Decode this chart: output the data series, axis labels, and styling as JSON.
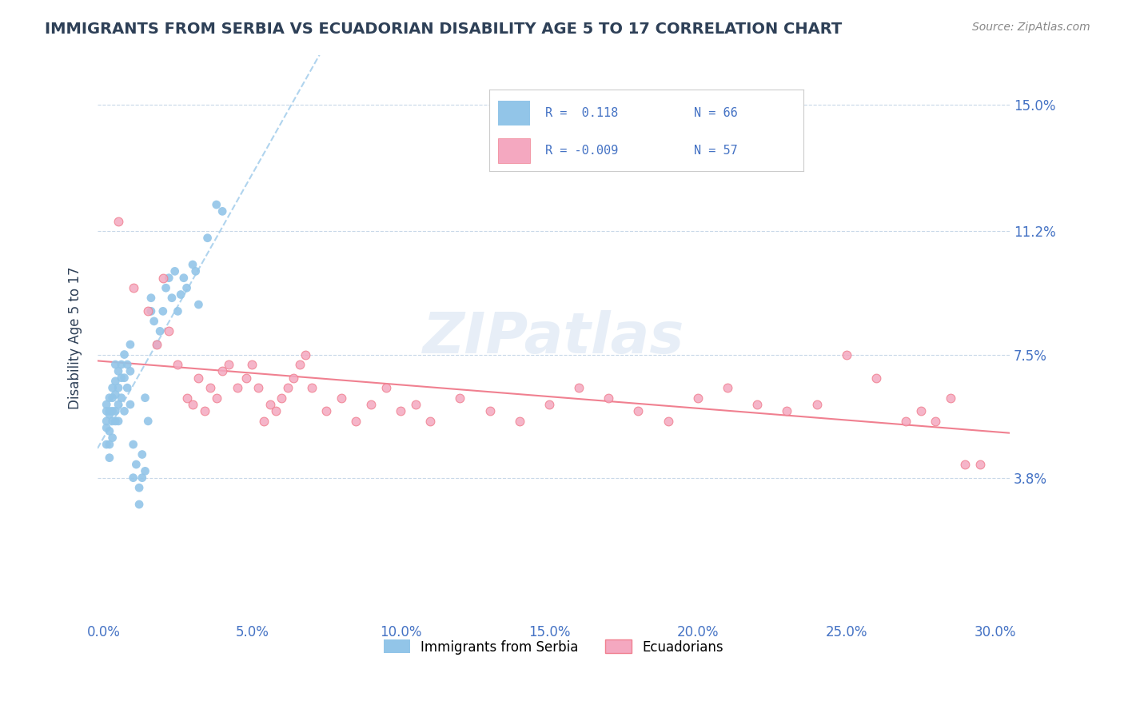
{
  "title": "IMMIGRANTS FROM SERBIA VS ECUADORIAN DISABILITY AGE 5 TO 17 CORRELATION CHART",
  "source_text": "Source: ZipAtlas.com",
  "xlabel_ticks": [
    "0.0%",
    "30.0%"
  ],
  "ylabel_ticks": [
    0.038,
    0.075,
    0.112,
    0.15
  ],
  "ylabel_tick_labels": [
    "3.8%",
    "7.5%",
    "11.2%",
    "15.0%"
  ],
  "xlim": [
    -0.002,
    0.305
  ],
  "ylim": [
    -0.005,
    0.165
  ],
  "blue_color": "#92C5E8",
  "pink_color": "#F4A8C0",
  "blue_line_color": "#B0D4EE",
  "pink_line_color": "#F08090",
  "title_color": "#2E4057",
  "label_color": "#4472C4",
  "grid_color": "#C8D8E8",
  "watermark": "ZIPatlas",
  "watermark_color": "#D0DFF0",
  "legend_r1": "R =  0.118",
  "legend_n1": "N = 66",
  "legend_r2": "R = -0.009",
  "legend_n2": "N = 57",
  "legend_label1": "Immigrants from Serbia",
  "legend_label2": "Ecuadorians",
  "blue_x": [
    0.001,
    0.001,
    0.001,
    0.001,
    0.001,
    0.002,
    0.002,
    0.002,
    0.002,
    0.002,
    0.002,
    0.003,
    0.003,
    0.003,
    0.003,
    0.003,
    0.004,
    0.004,
    0.004,
    0.004,
    0.004,
    0.005,
    0.005,
    0.005,
    0.005,
    0.006,
    0.006,
    0.006,
    0.007,
    0.007,
    0.007,
    0.008,
    0.008,
    0.009,
    0.009,
    0.009,
    0.01,
    0.01,
    0.011,
    0.012,
    0.012,
    0.013,
    0.013,
    0.014,
    0.014,
    0.015,
    0.016,
    0.016,
    0.017,
    0.018,
    0.019,
    0.02,
    0.021,
    0.022,
    0.023,
    0.024,
    0.025,
    0.026,
    0.027,
    0.028,
    0.03,
    0.031,
    0.032,
    0.035,
    0.038,
    0.04
  ],
  "blue_y": [
    0.058,
    0.053,
    0.048,
    0.06,
    0.055,
    0.062,
    0.058,
    0.052,
    0.057,
    0.048,
    0.044,
    0.065,
    0.058,
    0.062,
    0.055,
    0.05,
    0.067,
    0.063,
    0.058,
    0.072,
    0.055,
    0.06,
    0.055,
    0.07,
    0.065,
    0.072,
    0.068,
    0.062,
    0.075,
    0.068,
    0.058,
    0.072,
    0.065,
    0.078,
    0.07,
    0.06,
    0.038,
    0.048,
    0.042,
    0.035,
    0.03,
    0.038,
    0.045,
    0.04,
    0.062,
    0.055,
    0.092,
    0.088,
    0.085,
    0.078,
    0.082,
    0.088,
    0.095,
    0.098,
    0.092,
    0.1,
    0.088,
    0.093,
    0.098,
    0.095,
    0.102,
    0.1,
    0.09,
    0.11,
    0.12,
    0.118
  ],
  "pink_x": [
    0.005,
    0.01,
    0.015,
    0.018,
    0.02,
    0.022,
    0.025,
    0.028,
    0.03,
    0.032,
    0.034,
    0.036,
    0.038,
    0.04,
    0.042,
    0.045,
    0.048,
    0.05,
    0.052,
    0.054,
    0.056,
    0.058,
    0.06,
    0.062,
    0.064,
    0.066,
    0.068,
    0.07,
    0.075,
    0.08,
    0.085,
    0.09,
    0.095,
    0.1,
    0.105,
    0.11,
    0.12,
    0.13,
    0.14,
    0.15,
    0.16,
    0.17,
    0.18,
    0.19,
    0.2,
    0.21,
    0.22,
    0.23,
    0.24,
    0.25,
    0.26,
    0.27,
    0.275,
    0.28,
    0.285,
    0.29,
    0.295
  ],
  "pink_y": [
    0.115,
    0.095,
    0.088,
    0.078,
    0.098,
    0.082,
    0.072,
    0.062,
    0.06,
    0.068,
    0.058,
    0.065,
    0.062,
    0.07,
    0.072,
    0.065,
    0.068,
    0.072,
    0.065,
    0.055,
    0.06,
    0.058,
    0.062,
    0.065,
    0.068,
    0.072,
    0.075,
    0.065,
    0.058,
    0.062,
    0.055,
    0.06,
    0.065,
    0.058,
    0.06,
    0.055,
    0.062,
    0.058,
    0.055,
    0.06,
    0.065,
    0.062,
    0.058,
    0.055,
    0.062,
    0.065,
    0.06,
    0.058,
    0.06,
    0.075,
    0.068,
    0.055,
    0.058,
    0.055,
    0.062,
    0.042,
    0.042
  ]
}
